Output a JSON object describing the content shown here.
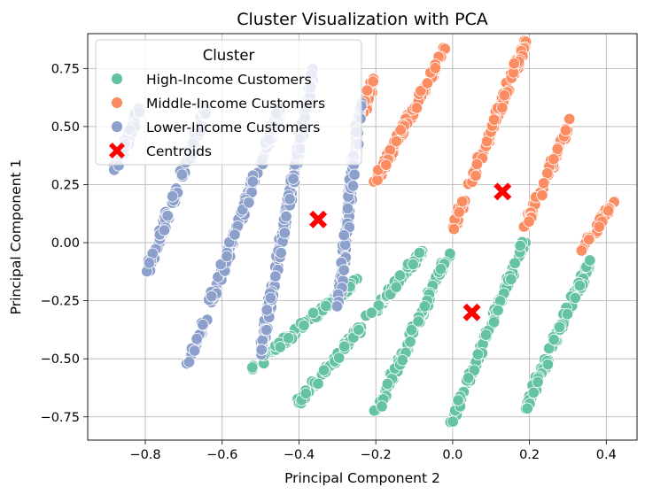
{
  "chart_data": {
    "type": "scatter",
    "title": "Cluster Visualization with PCA",
    "xlabel": "Principal Component 2",
    "ylabel": "Principal Component 1",
    "xlim": [
      -0.95,
      0.48
    ],
    "ylim": [
      -0.85,
      0.9
    ],
    "x_ticks": [
      -0.8,
      -0.6,
      -0.4,
      -0.2,
      0.0,
      0.2,
      0.4
    ],
    "x_tick_labels": [
      "−0.8",
      "−0.6",
      "−0.4",
      "−0.2",
      "0.0",
      "0.2",
      "0.4"
    ],
    "y_ticks": [
      -0.75,
      -0.5,
      -0.25,
      0.0,
      0.25,
      0.5,
      0.75
    ],
    "y_tick_labels": [
      "−0.75",
      "−0.50",
      "−0.25",
      "0.00",
      "0.25",
      "0.50",
      "0.75"
    ],
    "grid": true,
    "legend": {
      "title": "Cluster",
      "placement": "top-left",
      "entries": [
        {
          "label": "High-Income Customers",
          "color": "#66c2a5",
          "marker": "circle"
        },
        {
          "label": "Middle-Income Customers",
          "color": "#fc8d62",
          "marker": "circle"
        },
        {
          "label": "Lower-Income Customers",
          "color": "#8da0cb",
          "marker": "circle"
        },
        {
          "label": "Centroids",
          "color": "#ff0000",
          "marker": "x"
        }
      ]
    },
    "series": [
      {
        "name": "High-Income Customers",
        "color": "#66c2a5",
        "segments": [
          {
            "x0": -0.52,
            "y0": -0.54,
            "x1": -0.25,
            "y1": -0.16
          },
          {
            "x0": -0.4,
            "y0": -0.69,
            "x1": -0.08,
            "y1": -0.04
          },
          {
            "x0": -0.2,
            "y0": -0.73,
            "x1": -0.01,
            "y1": -0.05
          },
          {
            "x0": 0.0,
            "y0": -0.76,
            "x1": 0.19,
            "y1": 0.02
          },
          {
            "x0": 0.19,
            "y0": -0.71,
            "x1": 0.36,
            "y1": -0.07
          }
        ]
      },
      {
        "name": "Middle-Income Customers",
        "color": "#fc8d62",
        "segments": [
          {
            "x0": -0.2,
            "y0": 0.27,
            "x1": -0.02,
            "y1": 0.83
          },
          {
            "x0": 0.0,
            "y0": 0.05,
            "x1": 0.19,
            "y1": 0.87
          },
          {
            "x0": 0.19,
            "y0": 0.07,
            "x1": 0.31,
            "y1": 0.54
          },
          {
            "x0": 0.34,
            "y0": -0.03,
            "x1": 0.42,
            "y1": 0.19
          },
          {
            "x0": -0.23,
            "y0": 0.55,
            "x1": -0.21,
            "y1": 0.7
          }
        ]
      },
      {
        "name": "Lower-Income Customers",
        "color": "#8da0cb",
        "segments": [
          {
            "x0": -0.8,
            "y0": -0.14,
            "x1": -0.64,
            "y1": 0.58
          },
          {
            "x0": -0.69,
            "y0": -0.53,
            "x1": -0.45,
            "y1": 0.58
          },
          {
            "x0": -0.5,
            "y0": -0.47,
            "x1": -0.36,
            "y1": 0.76
          },
          {
            "x0": -0.3,
            "y0": -0.3,
            "x1": -0.24,
            "y1": 0.6
          },
          {
            "x0": -0.88,
            "y0": 0.31,
            "x1": -0.81,
            "y1": 0.59
          }
        ]
      }
    ],
    "centroids": [
      {
        "x": -0.35,
        "y": 0.1
      },
      {
        "x": 0.13,
        "y": 0.22
      },
      {
        "x": 0.05,
        "y": -0.3
      }
    ]
  }
}
